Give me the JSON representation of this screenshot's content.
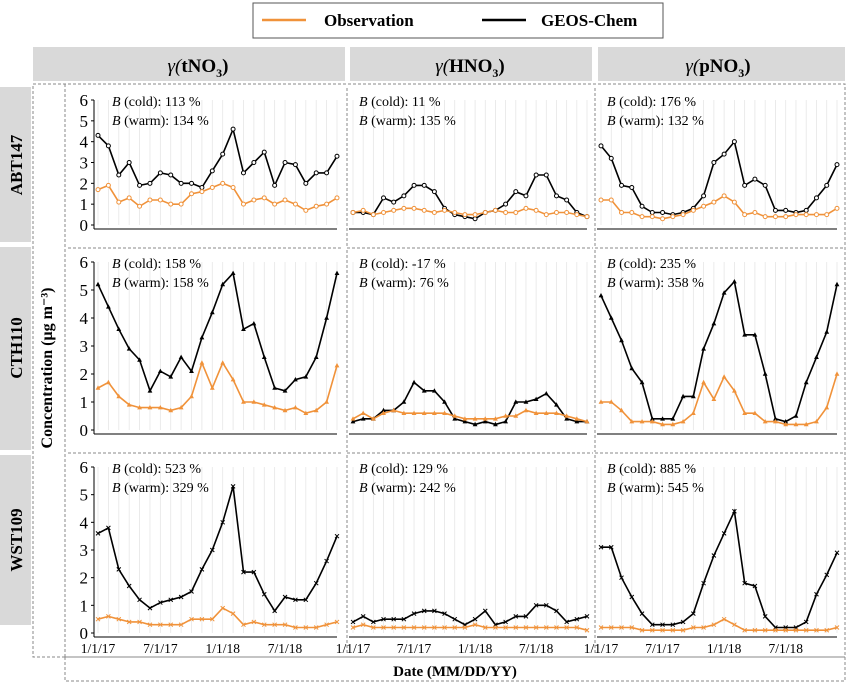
{
  "figure": {
    "legend": [
      {
        "label": "Observation",
        "color": "#f0923a"
      },
      {
        "label": "GEOS-Chem",
        "color": "#000000"
      }
    ],
    "ylabel": "Concentration (μg m⁻³)",
    "xlabel": "Date (MM/DD/YY)",
    "columns": [
      {
        "pre": "γ(",
        "main": "tNO",
        "sub": "3",
        "post": ")"
      },
      {
        "pre": "γ(",
        "main": "HNO",
        "sub": "3",
        "post": ")"
      },
      {
        "pre": "γ(",
        "main": "pNO",
        "sub": "3",
        "post": ")"
      }
    ],
    "rows": [
      "ABT147",
      "CTH110",
      "WST109"
    ],
    "bias_letter": "B",
    "bias_cold_label": "(cold):",
    "bias_warm_label": "(warm):",
    "x_tick_labels": [
      "1/1/17",
      "7/1/17",
      "1/1/18",
      "7/1/18"
    ]
  },
  "chart_data": {
    "type": "line",
    "x_dates": [
      "2017-01",
      "2017-02",
      "2017-03",
      "2017-04",
      "2017-05",
      "2017-06",
      "2017-07",
      "2017-08",
      "2017-09",
      "2017-10",
      "2017-11",
      "2017-12",
      "2018-01",
      "2018-02",
      "2018-03",
      "2018-04",
      "2018-05",
      "2018-06",
      "2018-07",
      "2018-08",
      "2018-09",
      "2018-10",
      "2018-11",
      "2018-12"
    ],
    "ylim": [
      0,
      6
    ],
    "y_ticks": [
      0,
      1,
      2,
      3,
      4,
      5,
      6
    ],
    "panels": [
      {
        "row": "ABT147",
        "column": "γ(tNO3)",
        "marker": "circle",
        "bias_cold": "113 %",
        "bias_warm": "134 %",
        "series": [
          {
            "name": "Observation",
            "values": [
              1.7,
              1.9,
              1.1,
              1.3,
              0.9,
              1.2,
              1.2,
              1.0,
              1.0,
              1.5,
              1.6,
              1.8,
              2.0,
              1.8,
              1.0,
              1.2,
              1.3,
              1.0,
              1.2,
              1.0,
              0.7,
              0.9,
              1.0,
              1.3
            ]
          },
          {
            "name": "GEOS-Chem",
            "values": [
              4.3,
              3.8,
              2.4,
              3.0,
              1.9,
              2.0,
              2.5,
              2.4,
              2.0,
              2.0,
              1.8,
              2.6,
              3.4,
              4.6,
              2.5,
              3.0,
              3.5,
              1.9,
              3.0,
              2.9,
              2.0,
              2.5,
              2.5,
              3.3
            ]
          }
        ]
      },
      {
        "row": "ABT147",
        "column": "γ(HNO3)",
        "marker": "circle",
        "bias_cold": "11 %",
        "bias_warm": "135 %",
        "series": [
          {
            "name": "Observation",
            "values": [
              0.6,
              0.7,
              0.5,
              0.6,
              0.7,
              0.8,
              0.8,
              0.7,
              0.6,
              0.7,
              0.6,
              0.5,
              0.5,
              0.6,
              0.7,
              0.6,
              0.6,
              0.8,
              0.7,
              0.5,
              0.6,
              0.6,
              0.5,
              0.4
            ]
          },
          {
            "name": "GEOS-Chem",
            "values": [
              0.6,
              0.6,
              0.5,
              1.3,
              1.1,
              1.4,
              1.9,
              1.9,
              1.6,
              0.8,
              0.5,
              0.4,
              0.3,
              0.6,
              0.7,
              1.0,
              1.6,
              1.4,
              2.4,
              2.4,
              1.4,
              1.2,
              0.6,
              0.4
            ]
          }
        ]
      },
      {
        "row": "ABT147",
        "column": "γ(pNO3)",
        "marker": "circle",
        "bias_cold": "176 %",
        "bias_warm": "132 %",
        "series": [
          {
            "name": "Observation",
            "values": [
              1.2,
              1.2,
              0.6,
              0.6,
              0.4,
              0.4,
              0.3,
              0.4,
              0.5,
              0.7,
              0.9,
              1.1,
              1.4,
              1.1,
              0.5,
              0.6,
              0.4,
              0.4,
              0.4,
              0.5,
              0.5,
              0.5,
              0.5,
              0.8
            ]
          },
          {
            "name": "GEOS-Chem",
            "values": [
              3.8,
              3.2,
              1.9,
              1.8,
              0.9,
              0.6,
              0.6,
              0.5,
              0.6,
              0.8,
              1.4,
              3.0,
              3.4,
              4.0,
              1.9,
              2.2,
              1.9,
              0.7,
              0.7,
              0.6,
              0.7,
              1.3,
              1.9,
              2.9
            ]
          }
        ]
      },
      {
        "row": "CTH110",
        "column": "γ(tNO3)",
        "marker": "triangle",
        "bias_cold": "158 %",
        "bias_warm": "158 %",
        "series": [
          {
            "name": "Observation",
            "values": [
              1.5,
              1.7,
              1.2,
              0.9,
              0.8,
              0.8,
              0.8,
              0.7,
              0.8,
              1.2,
              2.4,
              1.5,
              2.4,
              1.8,
              1.0,
              1.0,
              0.9,
              0.8,
              0.7,
              0.8,
              0.6,
              0.7,
              1.0,
              2.3
            ]
          },
          {
            "name": "GEOS-Chem",
            "values": [
              5.2,
              4.4,
              3.6,
              2.9,
              2.5,
              1.4,
              2.1,
              1.9,
              2.6,
              2.1,
              3.3,
              4.2,
              5.2,
              5.6,
              3.6,
              3.8,
              2.6,
              1.5,
              1.4,
              1.8,
              1.9,
              2.6,
              4.0,
              5.6
            ]
          }
        ]
      },
      {
        "row": "CTH110",
        "column": "γ(HNO3)",
        "marker": "triangle",
        "bias_cold": "-17 %",
        "bias_warm": "76 %",
        "series": [
          {
            "name": "Observation",
            "values": [
              0.4,
              0.6,
              0.4,
              0.6,
              0.7,
              0.6,
              0.6,
              0.6,
              0.6,
              0.6,
              0.5,
              0.4,
              0.4,
              0.4,
              0.4,
              0.5,
              0.5,
              0.7,
              0.6,
              0.6,
              0.6,
              0.5,
              0.4,
              0.3
            ]
          },
          {
            "name": "GEOS-Chem",
            "values": [
              0.3,
              0.4,
              0.4,
              0.7,
              0.7,
              1.0,
              1.7,
              1.4,
              1.4,
              1.0,
              0.4,
              0.3,
              0.2,
              0.3,
              0.2,
              0.3,
              1.0,
              1.0,
              1.1,
              1.3,
              0.9,
              0.4,
              0.3,
              0.3
            ]
          }
        ]
      },
      {
        "row": "CTH110",
        "column": "γ(pNO3)",
        "marker": "triangle",
        "bias_cold": "235 %",
        "bias_warm": "358 %",
        "series": [
          {
            "name": "Observation",
            "values": [
              1.0,
              1.0,
              0.7,
              0.3,
              0.3,
              0.3,
              0.2,
              0.2,
              0.3,
              0.6,
              1.7,
              1.1,
              1.9,
              1.4,
              0.6,
              0.6,
              0.3,
              0.3,
              0.2,
              0.2,
              0.2,
              0.3,
              0.8,
              2.0
            ]
          },
          {
            "name": "GEOS-Chem",
            "values": [
              4.8,
              4.0,
              3.2,
              2.2,
              1.7,
              0.4,
              0.4,
              0.4,
              1.2,
              1.2,
              2.9,
              3.8,
              4.9,
              5.3,
              3.4,
              3.4,
              2.0,
              0.4,
              0.3,
              0.5,
              1.7,
              2.6,
              3.5,
              5.2
            ]
          }
        ]
      },
      {
        "row": "WST109",
        "column": "γ(tNO3)",
        "marker": "x",
        "bias_cold": "523 %",
        "bias_warm": "329 %",
        "series": [
          {
            "name": "Observation",
            "values": [
              0.5,
              0.6,
              0.5,
              0.4,
              0.4,
              0.3,
              0.3,
              0.3,
              0.3,
              0.5,
              0.5,
              0.5,
              0.9,
              0.7,
              0.3,
              0.4,
              0.3,
              0.3,
              0.3,
              0.2,
              0.2,
              0.2,
              0.3,
              0.4
            ]
          },
          {
            "name": "GEOS-Chem",
            "values": [
              3.6,
              3.8,
              2.3,
              1.7,
              1.2,
              0.9,
              1.1,
              1.2,
              1.3,
              1.5,
              2.3,
              3.0,
              4.0,
              5.3,
              2.2,
              2.2,
              1.4,
              0.8,
              1.3,
              1.2,
              1.2,
              1.8,
              2.6,
              3.5
            ]
          }
        ]
      },
      {
        "row": "WST109",
        "column": "γ(HNO3)",
        "marker": "x",
        "bias_cold": "129 %",
        "bias_warm": "242 %",
        "series": [
          {
            "name": "Observation",
            "values": [
              0.2,
              0.3,
              0.2,
              0.2,
              0.2,
              0.2,
              0.2,
              0.2,
              0.2,
              0.2,
              0.2,
              0.2,
              0.3,
              0.2,
              0.2,
              0.2,
              0.2,
              0.2,
              0.2,
              0.2,
              0.2,
              0.2,
              0.2,
              0.1
            ]
          },
          {
            "name": "GEOS-Chem",
            "values": [
              0.4,
              0.6,
              0.4,
              0.5,
              0.5,
              0.5,
              0.7,
              0.8,
              0.8,
              0.7,
              0.5,
              0.3,
              0.5,
              0.8,
              0.3,
              0.4,
              0.6,
              0.6,
              1.0,
              1.0,
              0.8,
              0.4,
              0.5,
              0.6
            ]
          }
        ]
      },
      {
        "row": "WST109",
        "column": "γ(pNO3)",
        "marker": "x",
        "bias_cold": "885 %",
        "bias_warm": "545 %",
        "series": [
          {
            "name": "Observation",
            "values": [
              0.2,
              0.2,
              0.2,
              0.2,
              0.1,
              0.1,
              0.1,
              0.1,
              0.1,
              0.2,
              0.2,
              0.3,
              0.5,
              0.3,
              0.1,
              0.1,
              0.1,
              0.1,
              0.1,
              0.1,
              0.1,
              0.1,
              0.1,
              0.2
            ]
          },
          {
            "name": "GEOS-Chem",
            "values": [
              3.1,
              3.1,
              2.0,
              1.3,
              0.7,
              0.3,
              0.3,
              0.3,
              0.4,
              0.7,
              1.8,
              2.8,
              3.6,
              4.4,
              1.8,
              1.7,
              0.6,
              0.2,
              0.2,
              0.2,
              0.4,
              1.4,
              2.1,
              2.9
            ]
          }
        ]
      }
    ]
  }
}
